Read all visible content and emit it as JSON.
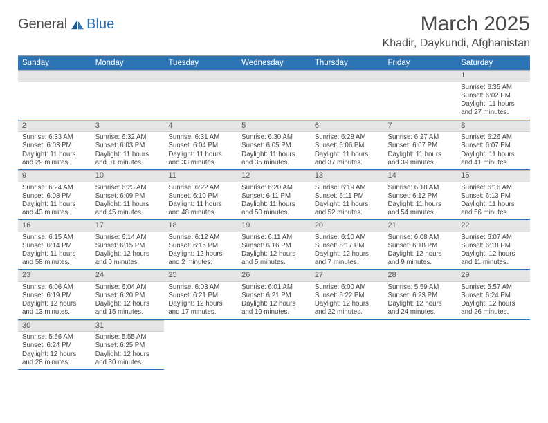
{
  "logo": {
    "general": "General",
    "blue": "Blue"
  },
  "title": "March 2025",
  "location": "Khadir, Daykundi, Afghanistan",
  "colors": {
    "header_bg": "#2d74b7",
    "header_text": "#ffffff",
    "daynum_bg": "#e5e5e5",
    "cell_border": "#2d74b7",
    "body_text": "#444444"
  },
  "day_headers": [
    "Sunday",
    "Monday",
    "Tuesday",
    "Wednesday",
    "Thursday",
    "Friday",
    "Saturday"
  ],
  "weeks": [
    [
      null,
      null,
      null,
      null,
      null,
      null,
      {
        "n": "1",
        "sr": "6:35 AM",
        "ss": "6:02 PM",
        "dl": "11 hours and 27 minutes."
      }
    ],
    [
      {
        "n": "2",
        "sr": "6:33 AM",
        "ss": "6:03 PM",
        "dl": "11 hours and 29 minutes."
      },
      {
        "n": "3",
        "sr": "6:32 AM",
        "ss": "6:03 PM",
        "dl": "11 hours and 31 minutes."
      },
      {
        "n": "4",
        "sr": "6:31 AM",
        "ss": "6:04 PM",
        "dl": "11 hours and 33 minutes."
      },
      {
        "n": "5",
        "sr": "6:30 AM",
        "ss": "6:05 PM",
        "dl": "11 hours and 35 minutes."
      },
      {
        "n": "6",
        "sr": "6:28 AM",
        "ss": "6:06 PM",
        "dl": "11 hours and 37 minutes."
      },
      {
        "n": "7",
        "sr": "6:27 AM",
        "ss": "6:07 PM",
        "dl": "11 hours and 39 minutes."
      },
      {
        "n": "8",
        "sr": "6:26 AM",
        "ss": "6:07 PM",
        "dl": "11 hours and 41 minutes."
      }
    ],
    [
      {
        "n": "9",
        "sr": "6:24 AM",
        "ss": "6:08 PM",
        "dl": "11 hours and 43 minutes."
      },
      {
        "n": "10",
        "sr": "6:23 AM",
        "ss": "6:09 PM",
        "dl": "11 hours and 45 minutes."
      },
      {
        "n": "11",
        "sr": "6:22 AM",
        "ss": "6:10 PM",
        "dl": "11 hours and 48 minutes."
      },
      {
        "n": "12",
        "sr": "6:20 AM",
        "ss": "6:11 PM",
        "dl": "11 hours and 50 minutes."
      },
      {
        "n": "13",
        "sr": "6:19 AM",
        "ss": "6:11 PM",
        "dl": "11 hours and 52 minutes."
      },
      {
        "n": "14",
        "sr": "6:18 AM",
        "ss": "6:12 PM",
        "dl": "11 hours and 54 minutes."
      },
      {
        "n": "15",
        "sr": "6:16 AM",
        "ss": "6:13 PM",
        "dl": "11 hours and 56 minutes."
      }
    ],
    [
      {
        "n": "16",
        "sr": "6:15 AM",
        "ss": "6:14 PM",
        "dl": "11 hours and 58 minutes."
      },
      {
        "n": "17",
        "sr": "6:14 AM",
        "ss": "6:15 PM",
        "dl": "12 hours and 0 minutes."
      },
      {
        "n": "18",
        "sr": "6:12 AM",
        "ss": "6:15 PM",
        "dl": "12 hours and 2 minutes."
      },
      {
        "n": "19",
        "sr": "6:11 AM",
        "ss": "6:16 PM",
        "dl": "12 hours and 5 minutes."
      },
      {
        "n": "20",
        "sr": "6:10 AM",
        "ss": "6:17 PM",
        "dl": "12 hours and 7 minutes."
      },
      {
        "n": "21",
        "sr": "6:08 AM",
        "ss": "6:18 PM",
        "dl": "12 hours and 9 minutes."
      },
      {
        "n": "22",
        "sr": "6:07 AM",
        "ss": "6:18 PM",
        "dl": "12 hours and 11 minutes."
      }
    ],
    [
      {
        "n": "23",
        "sr": "6:06 AM",
        "ss": "6:19 PM",
        "dl": "12 hours and 13 minutes."
      },
      {
        "n": "24",
        "sr": "6:04 AM",
        "ss": "6:20 PM",
        "dl": "12 hours and 15 minutes."
      },
      {
        "n": "25",
        "sr": "6:03 AM",
        "ss": "6:21 PM",
        "dl": "12 hours and 17 minutes."
      },
      {
        "n": "26",
        "sr": "6:01 AM",
        "ss": "6:21 PM",
        "dl": "12 hours and 19 minutes."
      },
      {
        "n": "27",
        "sr": "6:00 AM",
        "ss": "6:22 PM",
        "dl": "12 hours and 22 minutes."
      },
      {
        "n": "28",
        "sr": "5:59 AM",
        "ss": "6:23 PM",
        "dl": "12 hours and 24 minutes."
      },
      {
        "n": "29",
        "sr": "5:57 AM",
        "ss": "6:24 PM",
        "dl": "12 hours and 26 minutes."
      }
    ],
    [
      {
        "n": "30",
        "sr": "5:56 AM",
        "ss": "6:24 PM",
        "dl": "12 hours and 28 minutes."
      },
      {
        "n": "31",
        "sr": "5:55 AM",
        "ss": "6:25 PM",
        "dl": "12 hours and 30 minutes."
      },
      null,
      null,
      null,
      null,
      null
    ]
  ],
  "labels": {
    "sunrise": "Sunrise:",
    "sunset": "Sunset:",
    "daylight": "Daylight:"
  }
}
